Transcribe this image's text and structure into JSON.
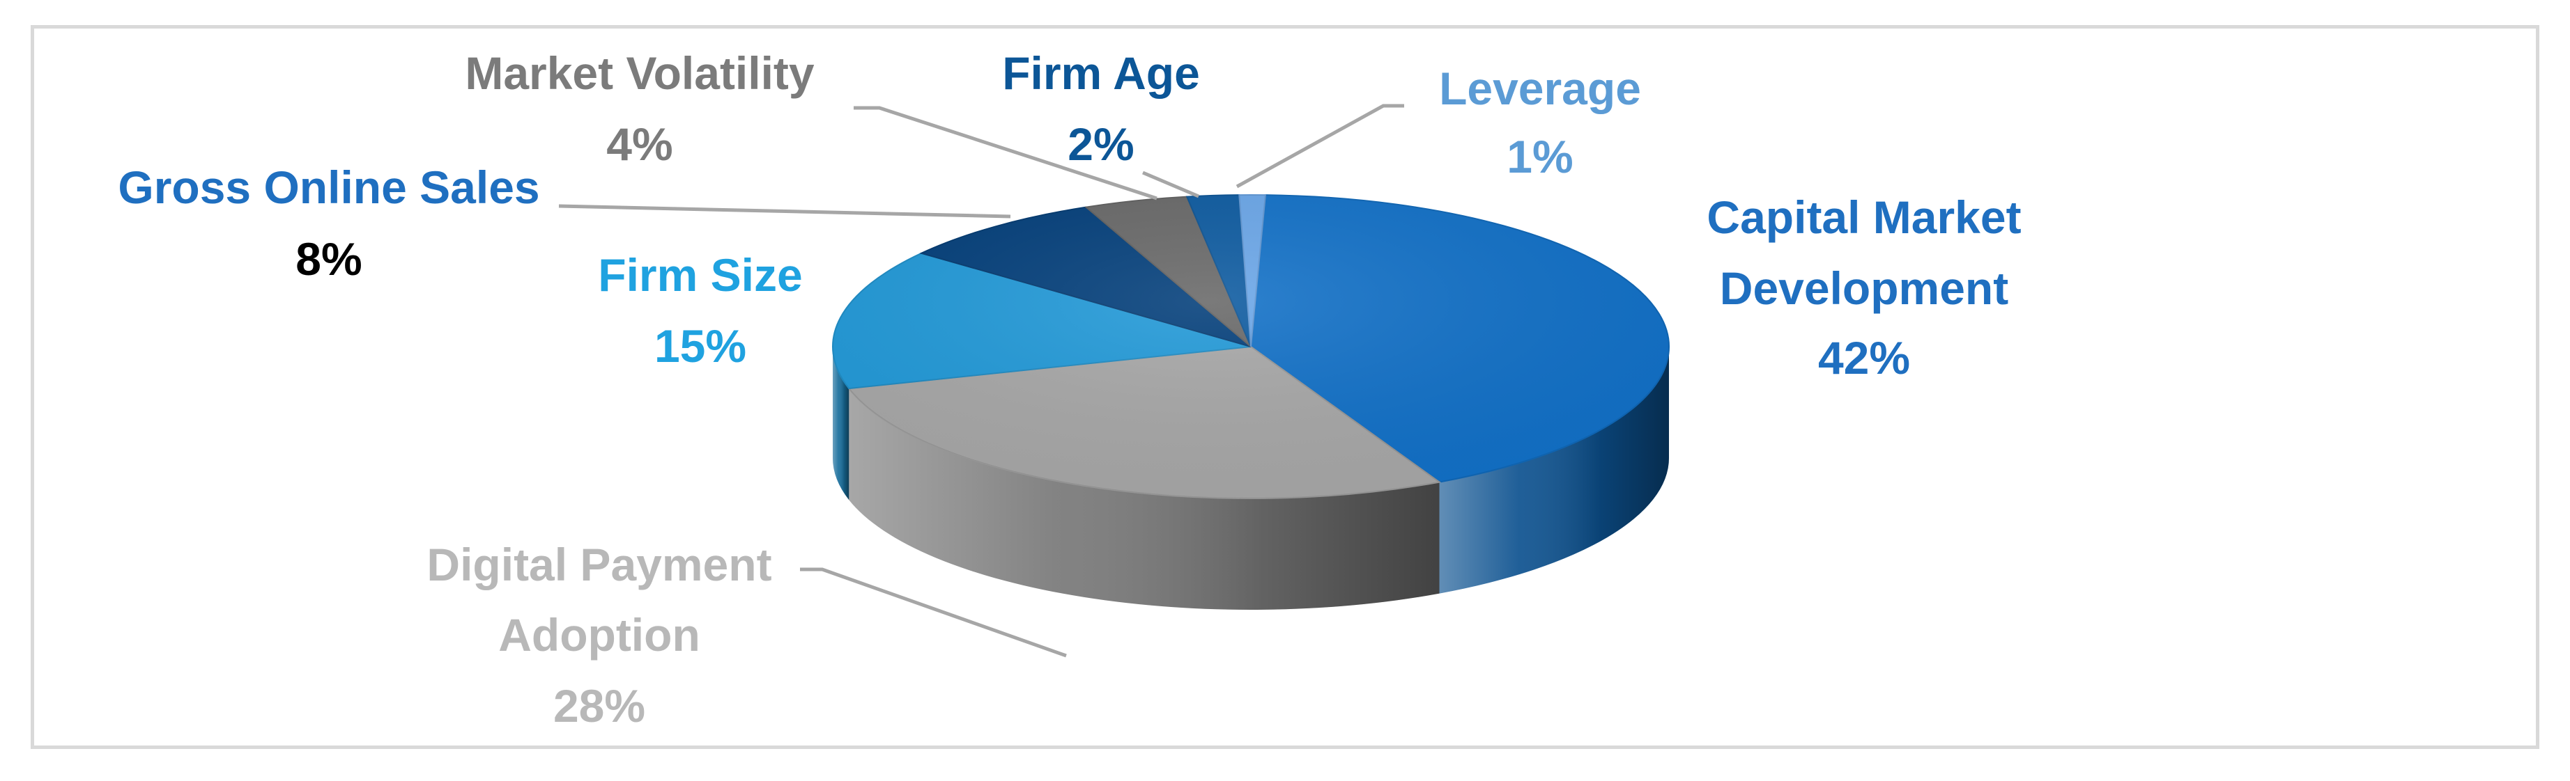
{
  "chart_data": {
    "type": "pie",
    "title": "",
    "unit": "%",
    "slices": [
      {
        "label": "Capital Market Development",
        "value": 42,
        "value_label": "42%",
        "color": "#1170c7",
        "label_color": "#1f6fc0"
      },
      {
        "label": "Digital Payment Adoption",
        "value": 28,
        "value_label": "28%",
        "color": "#a7a7a7",
        "label_color": "#b8b8b8"
      },
      {
        "label": "Firm Size",
        "value": 15,
        "value_label": "15%",
        "color": "#2199d8",
        "label_color": "#1fa2e0"
      },
      {
        "label": "Gross Online Sales",
        "value": 8,
        "value_label": "8%",
        "color": "#023e7a",
        "label_color": "#1f6fc0",
        "value_color": "#000000"
      },
      {
        "label": "Market Volatility",
        "value": 4,
        "value_label": "4%",
        "color": "#686868",
        "label_color": "#7b7b7b"
      },
      {
        "label": "Firm Age",
        "value": 2,
        "value_label": "2%",
        "color": "#0c5aa0",
        "label_color": "#0c5697"
      },
      {
        "label": "Leverage",
        "value": 1,
        "value_label": "1%",
        "color": "#6aa6e8",
        "label_color": "#5b9bd5"
      }
    ],
    "style": "3d-pie",
    "legend": "none",
    "labels": "outside-with-leader-lines"
  }
}
